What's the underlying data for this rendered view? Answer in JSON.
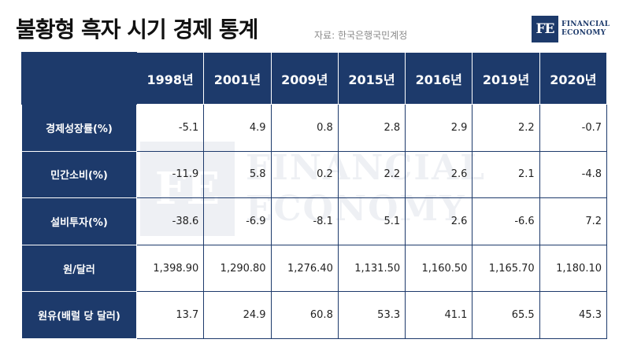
{
  "header": {
    "title": "불황형 흑자 시기 경제 통계",
    "source": "자료: 한국은행국민계정"
  },
  "logo": {
    "mark": "FE",
    "line1": "FINANCIAL",
    "line2": "ECONOMY"
  },
  "table": {
    "years": [
      "1998년",
      "2001년",
      "2009년",
      "2015년",
      "2016년",
      "2019년",
      "2020년"
    ],
    "rows": [
      {
        "label": "경제성장률(%)",
        "values": [
          "-5.1",
          "4.9",
          "0.8",
          "2.8",
          "2.9",
          "2.2",
          "-0.7"
        ]
      },
      {
        "label": "민간소비(%)",
        "values": [
          "-11.9",
          "5.8",
          "0.2",
          "2.2",
          "2.6",
          "2.1",
          "-4.8"
        ]
      },
      {
        "label": "설비투자(%)",
        "values": [
          "-38.6",
          "-6.9",
          "-8.1",
          "5.1",
          "2.6",
          "-6.6",
          "7.2"
        ]
      },
      {
        "label": "원/달러",
        "values": [
          "1,398.90",
          "1,290.80",
          "1,276.40",
          "1,131.50",
          "1,160.50",
          "1,165.70",
          "1,180.10"
        ]
      },
      {
        "label": "원유(배럴 당 달러)",
        "values": [
          "13.7",
          "24.9",
          "60.8",
          "53.3",
          "41.1",
          "65.5",
          "45.3"
        ]
      }
    ]
  },
  "colors": {
    "navy": "#1d3a6b",
    "background": "#ffffff"
  }
}
